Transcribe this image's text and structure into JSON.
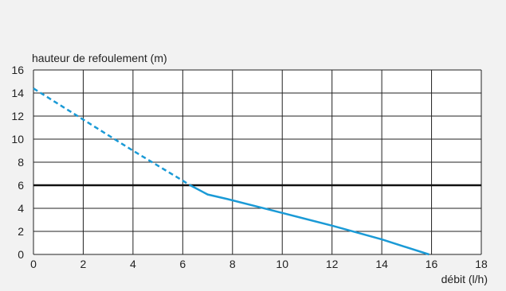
{
  "chart_data": {
    "type": "line",
    "title": "",
    "ylabel": "hauteur de refoulement (m)",
    "xlabel": "débit (l/h)",
    "xlim": [
      0,
      18
    ],
    "ylim": [
      0,
      16
    ],
    "x_ticks": [
      0,
      2,
      4,
      6,
      8,
      10,
      12,
      14,
      16,
      18
    ],
    "y_ticks": [
      0,
      2,
      4,
      6,
      8,
      10,
      12,
      14,
      16
    ],
    "grid": true,
    "reference_line": {
      "y": 6,
      "color": "#111111"
    },
    "series": [
      {
        "style": "dashed",
        "color": "#1a9ad6",
        "points": [
          [
            0,
            14.4
          ],
          [
            2,
            11.7
          ],
          [
            4,
            9.0
          ],
          [
            6,
            6.4
          ],
          [
            6.3,
            6.0
          ]
        ]
      },
      {
        "style": "solid",
        "color": "#1a9ad6",
        "points": [
          [
            6.3,
            6.0
          ],
          [
            7.0,
            5.2
          ],
          [
            7.8,
            4.8
          ],
          [
            10,
            3.6
          ],
          [
            12,
            2.5
          ],
          [
            14,
            1.3
          ],
          [
            15.9,
            0
          ]
        ]
      }
    ],
    "colors": {
      "background": "#f2f2f2",
      "grid": "#222222",
      "plot_background": "#ffffff"
    }
  }
}
